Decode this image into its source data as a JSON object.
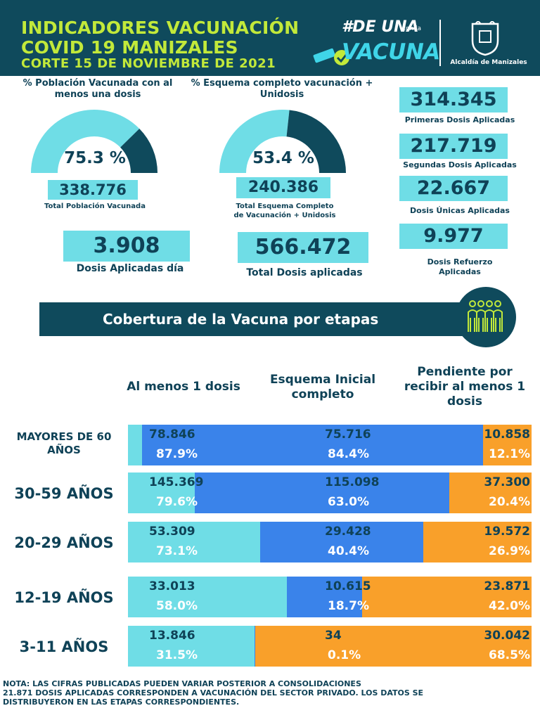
{
  "header": {
    "title_line1": "INDICADORES VACUNACIÓN",
    "title_line2": "COVID 19 MANIZALES",
    "subtitle": "CORTE 15  DE NOVIEMBRE  DE 2021",
    "campaign_hashtag": "#DE UNA",
    "campaign_conla": "con la",
    "campaign_vacuna": "VACUNA",
    "institution": "Alcaldía de Manizales",
    "colors": {
      "background": "#0f4a5c",
      "title": "#c2e93a",
      "accent": "#3fd5e8"
    }
  },
  "stats": {
    "gauge1": {
      "label": "% Población Vacunada con al menos una dosis",
      "value": "75.3 %",
      "fraction": 0.753
    },
    "gauge2": {
      "label": "% Esquema completo vacunación + Unidosis",
      "value": "53.4 %",
      "fraction": 0.534
    },
    "total_vacunada": {
      "value": "338.776",
      "label": "Total Población Vacunada"
    },
    "total_esquema": {
      "value": "240.386",
      "label_line1": "Total Esquema Completo",
      "label_line2": "de Vacunación + Unidosis"
    },
    "dosis_dia": {
      "value": "3.908",
      "label": "Dosis Aplicadas día"
    },
    "total_dosis": {
      "value": "566.472",
      "label": "Total Dosis aplicadas"
    },
    "primeras": {
      "value": "314.345",
      "label": "Primeras Dosis Aplicadas"
    },
    "segundas": {
      "value": "217.719",
      "label": "Segundas Dosis Aplicadas"
    },
    "unicas": {
      "value": "22.667",
      "label": "Dosis Únicas Aplicadas"
    },
    "refuerzo": {
      "value": "9.977",
      "label_line1": "Dosis Refuerzo",
      "label_line2": "Aplicadas"
    }
  },
  "banner": {
    "title": "Cobertura de la Vacuna por etapas",
    "icon": "people-group-icon"
  },
  "columns": {
    "col1": "Al menos 1 dosis",
    "col2_line1": "Esquema Inicial",
    "col2_line2": "completo",
    "col3_line1": "Pendiente por",
    "col3_line2": "recibir al menos 1",
    "col3_line3": "dosis"
  },
  "chart_data": {
    "type": "bar",
    "orientation": "horizontal-stacked",
    "colors": {
      "al_menos_1": "#6fdde6",
      "esquema": "#3a83ea",
      "pendiente": "#f9a02a"
    },
    "rows": [
      {
        "label_line1": "MAYORES DE 60",
        "label_line2": "AÑOS",
        "al_menos_1": "78.846",
        "al_menos_1_pct": "87.9%",
        "esquema": "75.716",
        "esquema_pct": "84.4%",
        "pendiente": "10.858",
        "pendiente_pct": "12.1%",
        "frac_al_menos_1": 0.879,
        "frac_esquema": 0.844,
        "frac_pendiente": 0.121
      },
      {
        "label_line1": "30-59 AÑOS",
        "label_line2": "",
        "al_menos_1": "145.369",
        "al_menos_1_pct": "79.6%",
        "esquema": "115.098",
        "esquema_pct": "63.0%",
        "pendiente": "37.300",
        "pendiente_pct": "20.4%",
        "frac_al_menos_1": 0.796,
        "frac_esquema": 0.63,
        "frac_pendiente": 0.204
      },
      {
        "label_line1": "20-29 AÑOS",
        "label_line2": "",
        "al_menos_1": "53.309",
        "al_menos_1_pct": "73.1%",
        "esquema": "29.428",
        "esquema_pct": "40.4%",
        "pendiente": "19.572",
        "pendiente_pct": "26.9%",
        "frac_al_menos_1": 0.731,
        "frac_esquema": 0.404,
        "frac_pendiente": 0.269
      },
      {
        "label_line1": "12-19 AÑOS",
        "label_line2": "",
        "al_menos_1": "33.013",
        "al_menos_1_pct": "58.0%",
        "esquema": "10.615",
        "esquema_pct": "18.7%",
        "pendiente": "23.871",
        "pendiente_pct": "42.0%",
        "frac_al_menos_1": 0.58,
        "frac_esquema": 0.187,
        "frac_pendiente": 0.42
      },
      {
        "label_line1": "3-11 AÑOS",
        "label_line2": "",
        "al_menos_1": "13.846",
        "al_menos_1_pct": "31.5%",
        "esquema": "34",
        "esquema_pct": "0.1%",
        "pendiente": "30.042",
        "pendiente_pct": "68.5%",
        "frac_al_menos_1": 0.315,
        "frac_esquema": 0.001,
        "frac_pendiente": 0.685
      }
    ]
  },
  "note": {
    "line1": "NOTA: LAS CIFRAS PUBLICADAS PUEDEN VARIAR POSTERIOR A CONSOLIDACIONES",
    "line2": "21.871 DOSIS APLICADAS CORRESPONDEN A VACUNACIÓN  DEL SECTOR PRIVADO. LOS DATOS SE",
    "line3": "DISTRIBUYERON EN LAS ETAPAS CORRESPONDIENTES."
  }
}
